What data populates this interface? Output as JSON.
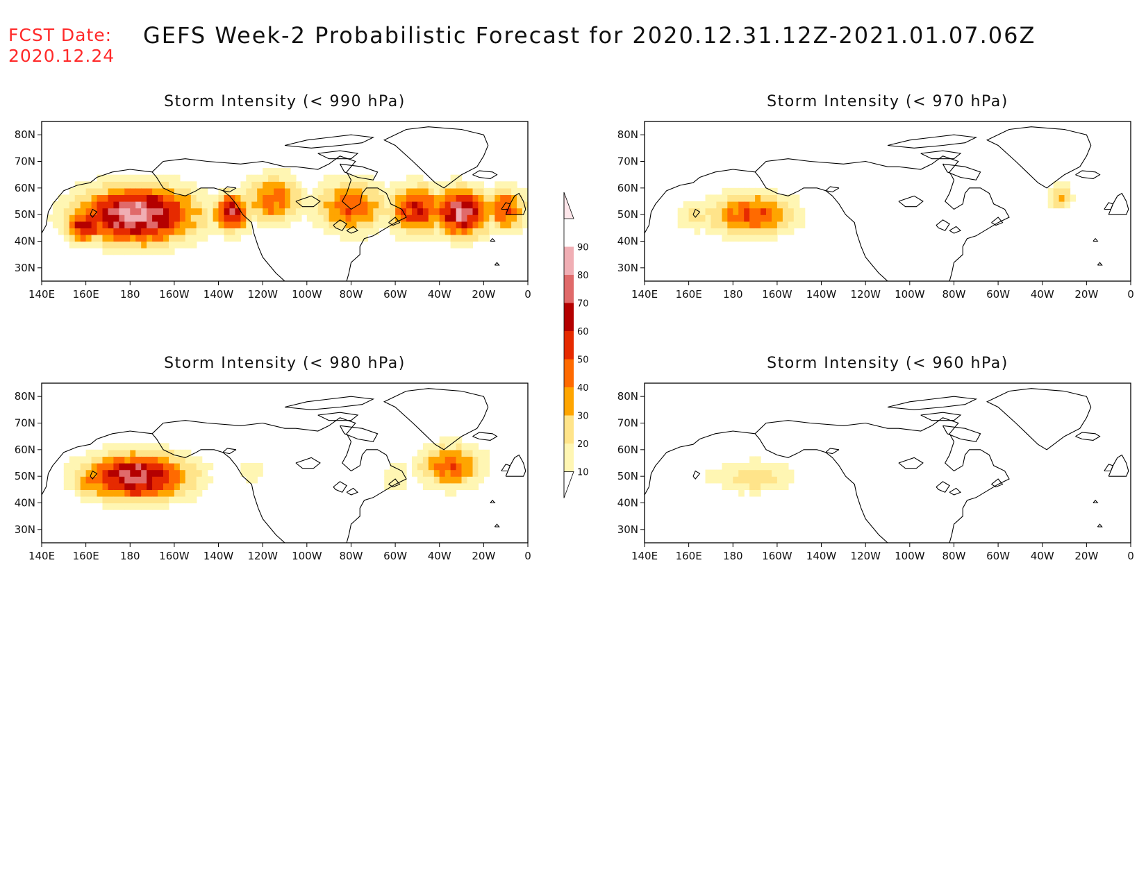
{
  "header": {
    "fcst_label": "FCST Date:",
    "fcst_date": "2020.12.24",
    "title": "GEFS Week-2 Probabilistic Forecast for 2020.12.31.12Z-2021.01.07.06Z"
  },
  "colors": {
    "header_red": "#ff2a2a",
    "coastline": "#000000"
  },
  "colorbar": {
    "levels": [
      10,
      20,
      30,
      40,
      50,
      60,
      70,
      80,
      90
    ],
    "labels": [
      "10",
      "20",
      "30",
      "40",
      "50",
      "60",
      "70",
      "80",
      "90"
    ],
    "colors": [
      "#fff6b3",
      "#ffe48a",
      "#ffa500",
      "#ff6a00",
      "#e62a00",
      "#b40000",
      "#e06a6a",
      "#f0aeb4",
      "#fde6ea"
    ]
  },
  "map": {
    "lon_labels": [
      "140E",
      "160E",
      "180",
      "160W",
      "140W",
      "120W",
      "100W",
      "80W",
      "60W",
      "40W",
      "20W",
      "0"
    ],
    "lon_values": [
      140,
      160,
      180,
      200,
      220,
      240,
      260,
      280,
      300,
      320,
      340,
      360
    ],
    "lat_labels": [
      "30N",
      "40N",
      "50N",
      "60N",
      "70N",
      "80N"
    ],
    "lat_values": [
      30,
      40,
      50,
      60,
      70,
      80
    ],
    "lon_range": [
      140,
      360
    ],
    "lat_range": [
      25,
      85
    ]
  },
  "panels": [
    {
      "title": "Storm Intensity (< 990 hPa)",
      "blobs": [
        {
          "lon": 183,
          "lat": 50,
          "rlon": 30,
          "rlat": 12,
          "peak": 95
        },
        {
          "lon": 160,
          "lat": 46,
          "rlon": 10,
          "rlat": 7,
          "peak": 75
        },
        {
          "lon": 226,
          "lat": 51,
          "rlon": 9,
          "rlat": 8,
          "peak": 80
        },
        {
          "lon": 245,
          "lat": 56,
          "rlon": 14,
          "rlat": 10,
          "peak": 55
        },
        {
          "lon": 280,
          "lat": 53,
          "rlon": 18,
          "rlat": 11,
          "peak": 55
        },
        {
          "lon": 310,
          "lat": 52,
          "rlon": 15,
          "rlat": 10,
          "peak": 68
        },
        {
          "lon": 330,
          "lat": 51,
          "rlon": 14,
          "rlat": 10,
          "peak": 90
        },
        {
          "lon": 350,
          "lat": 52,
          "rlon": 10,
          "rlat": 9,
          "peak": 60
        }
      ]
    },
    {
      "title": "Storm Intensity (< 970 hPa)",
      "blobs": [
        {
          "lon": 188,
          "lat": 50,
          "rlon": 22,
          "rlat": 9,
          "peak": 58
        },
        {
          "lon": 163,
          "lat": 50,
          "rlon": 9,
          "rlat": 7,
          "peak": 30
        },
        {
          "lon": 328,
          "lat": 57,
          "rlon": 6,
          "rlat": 5,
          "peak": 40
        }
      ]
    },
    {
      "title": "Storm Intensity (< 980 hPa)",
      "blobs": [
        {
          "lon": 183,
          "lat": 50,
          "rlon": 27,
          "rlat": 10,
          "peak": 85
        },
        {
          "lon": 162,
          "lat": 48,
          "rlon": 9,
          "rlat": 7,
          "peak": 45
        },
        {
          "lon": 235,
          "lat": 52,
          "rlon": 8,
          "rlat": 5,
          "peak": 22
        },
        {
          "lon": 325,
          "lat": 54,
          "rlon": 16,
          "rlat": 9,
          "peak": 55
        },
        {
          "lon": 300,
          "lat": 50,
          "rlon": 8,
          "rlat": 7,
          "peak": 22
        }
      ]
    },
    {
      "title": "Storm Intensity (< 960 hPa)",
      "blobs": [
        {
          "lon": 190,
          "lat": 50,
          "rlon": 20,
          "rlat": 7,
          "peak": 32
        },
        {
          "lon": 172,
          "lat": 50,
          "rlon": 9,
          "rlat": 5,
          "peak": 18
        }
      ]
    }
  ]
}
